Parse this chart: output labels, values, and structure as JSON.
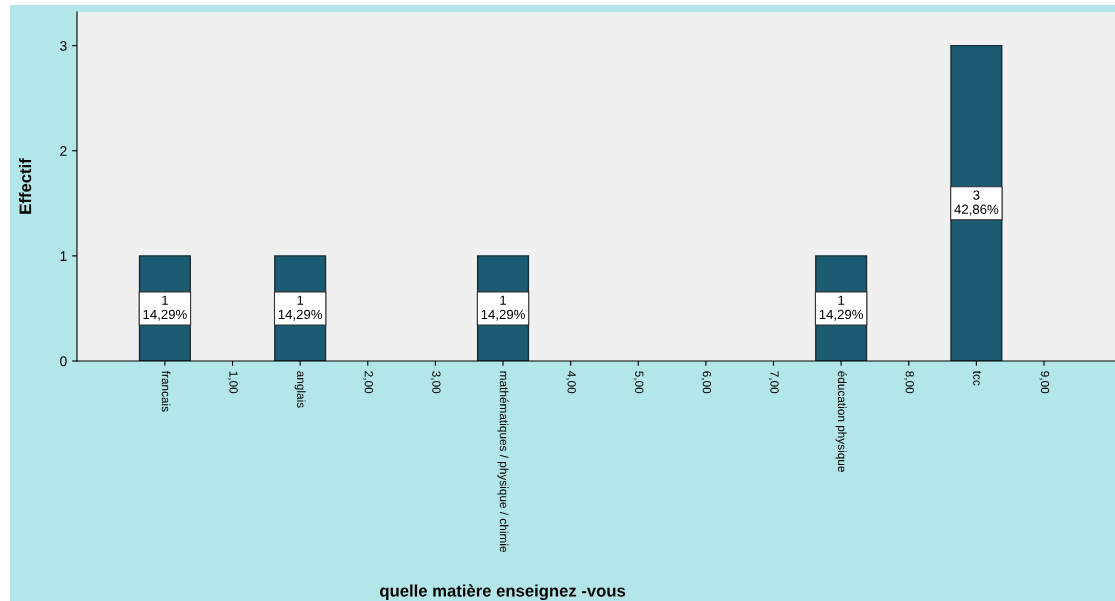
{
  "chart_data": {
    "type": "bar",
    "xlabel": "quelle matière enseignez -vous",
    "ylabel": "Effectif",
    "categories": [
      "francais",
      "1,00",
      "anglais",
      "2,00",
      "3,00",
      "mathématiques / physique / chimie",
      "4,00",
      "5,00",
      "6,00",
      "7,00",
      "éducation physique",
      "8,00",
      "tcc",
      "9,00"
    ],
    "values": [
      1,
      0,
      1,
      0,
      0,
      1,
      0,
      0,
      0,
      0,
      1,
      0,
      3,
      0
    ],
    "value_labels": [
      "1\n14,29%",
      null,
      "1\n14,29%",
      null,
      null,
      "1\n14,29%",
      null,
      null,
      null,
      null,
      "1\n14,29%",
      null,
      "3\n42,86%",
      null
    ],
    "color": "#1b5c73",
    "ylim": [
      0,
      3.32
    ],
    "yticks": [
      0,
      1,
      2,
      3
    ],
    "grid": false
  }
}
